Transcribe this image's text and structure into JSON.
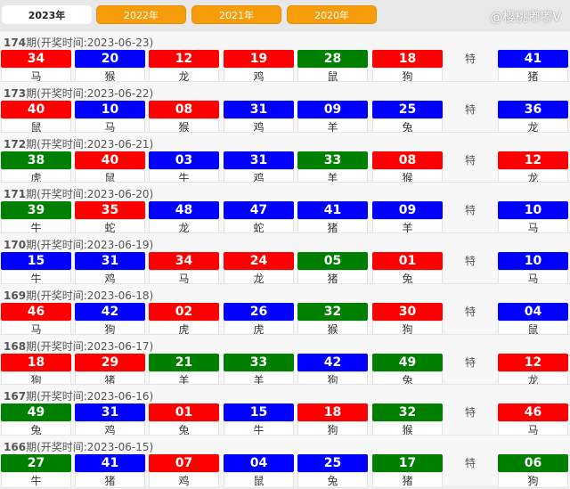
{
  "colors": {
    "red": "#ff0000",
    "blue": "#0000ff",
    "green": "#008000",
    "tab": "#f79d0b"
  },
  "tabs": [
    {
      "label": "2023年",
      "active": true
    },
    {
      "label": "2022年"
    },
    {
      "label": "2021年"
    },
    {
      "label": "2020年"
    }
  ],
  "special_label": "特",
  "draws": [
    {
      "period": "174",
      "title": "期(开奖时间:2023-06-23)",
      "balls": [
        [
          "34",
          "red",
          "马"
        ],
        [
          "20",
          "blue",
          "猴"
        ],
        [
          "12",
          "red",
          "龙"
        ],
        [
          "19",
          "red",
          "鸡"
        ],
        [
          "28",
          "green",
          "鼠"
        ],
        [
          "18",
          "red",
          "狗"
        ]
      ],
      "special": [
        "41",
        "blue",
        "猪"
      ]
    },
    {
      "period": "173",
      "title": "期(开奖时间:2023-06-22)",
      "balls": [
        [
          "40",
          "red",
          "鼠"
        ],
        [
          "10",
          "blue",
          "马"
        ],
        [
          "08",
          "red",
          "猴"
        ],
        [
          "31",
          "blue",
          "鸡"
        ],
        [
          "09",
          "blue",
          "羊"
        ],
        [
          "25",
          "blue",
          "兔"
        ]
      ],
      "special": [
        "36",
        "blue",
        "龙"
      ]
    },
    {
      "period": "172",
      "title": "期(开奖时间:2023-06-21)",
      "balls": [
        [
          "38",
          "green",
          "虎"
        ],
        [
          "40",
          "red",
          "鼠"
        ],
        [
          "03",
          "blue",
          "牛"
        ],
        [
          "31",
          "blue",
          "鸡"
        ],
        [
          "33",
          "green",
          "羊"
        ],
        [
          "08",
          "red",
          "猴"
        ]
      ],
      "special": [
        "12",
        "red",
        "龙"
      ]
    },
    {
      "period": "171",
      "title": "期(开奖时间:2023-06-20)",
      "balls": [
        [
          "39",
          "green",
          "牛"
        ],
        [
          "35",
          "red",
          "蛇"
        ],
        [
          "48",
          "blue",
          "龙"
        ],
        [
          "47",
          "blue",
          "蛇"
        ],
        [
          "41",
          "blue",
          "猪"
        ],
        [
          "09",
          "blue",
          "羊"
        ]
      ],
      "special": [
        "10",
        "blue",
        "马"
      ]
    },
    {
      "period": "170",
      "title": "期(开奖时间:2023-06-19)",
      "balls": [
        [
          "15",
          "blue",
          "牛"
        ],
        [
          "31",
          "blue",
          "鸡"
        ],
        [
          "34",
          "red",
          "马"
        ],
        [
          "24",
          "red",
          "龙"
        ],
        [
          "05",
          "green",
          "猪"
        ],
        [
          "01",
          "red",
          "兔"
        ]
      ],
      "special": [
        "10",
        "blue",
        "马"
      ]
    },
    {
      "period": "169",
      "title": "期(开奖时间:2023-06-18)",
      "balls": [
        [
          "46",
          "red",
          "马"
        ],
        [
          "42",
          "blue",
          "狗"
        ],
        [
          "02",
          "red",
          "虎"
        ],
        [
          "26",
          "blue",
          "虎"
        ],
        [
          "32",
          "green",
          "猴"
        ],
        [
          "30",
          "red",
          "狗"
        ]
      ],
      "special": [
        "04",
        "blue",
        "鼠"
      ]
    },
    {
      "period": "168",
      "title": "期(开奖时间:2023-06-17)",
      "balls": [
        [
          "18",
          "red",
          "狗"
        ],
        [
          "29",
          "red",
          "猪"
        ],
        [
          "21",
          "green",
          "羊"
        ],
        [
          "33",
          "green",
          "羊"
        ],
        [
          "42",
          "blue",
          "狗"
        ],
        [
          "49",
          "green",
          "兔"
        ]
      ],
      "special": [
        "12",
        "red",
        "龙"
      ]
    },
    {
      "period": "167",
      "title": "期(开奖时间:2023-06-16)",
      "balls": [
        [
          "49",
          "green",
          "兔"
        ],
        [
          "31",
          "blue",
          "鸡"
        ],
        [
          "01",
          "red",
          "兔"
        ],
        [
          "15",
          "blue",
          "牛"
        ],
        [
          "18",
          "red",
          "狗"
        ],
        [
          "32",
          "green",
          "猴"
        ]
      ],
      "special": [
        "46",
        "red",
        "马"
      ]
    },
    {
      "period": "166",
      "title": "期(开奖时间:2023-06-15)",
      "balls": [
        [
          "27",
          "green",
          "牛"
        ],
        [
          "41",
          "blue",
          "猪"
        ],
        [
          "07",
          "red",
          "鸡"
        ],
        [
          "04",
          "blue",
          "鼠"
        ],
        [
          "25",
          "blue",
          "兔"
        ],
        [
          "17",
          "green",
          "猪"
        ]
      ],
      "special": [
        "06",
        "green",
        "狗"
      ]
    }
  ],
  "watermark": "@樱桃嘟嘟V"
}
